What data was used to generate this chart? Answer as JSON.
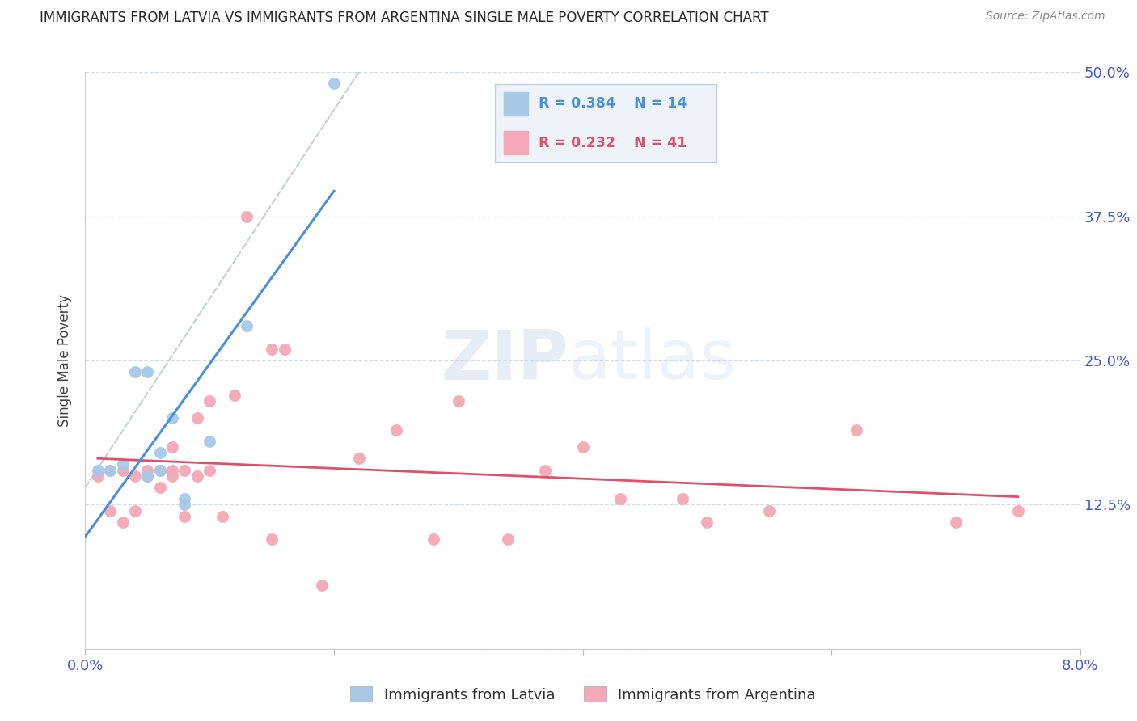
{
  "title": "IMMIGRANTS FROM LATVIA VS IMMIGRANTS FROM ARGENTINA SINGLE MALE POVERTY CORRELATION CHART",
  "source": "Source: ZipAtlas.com",
  "ylabel_label": "Single Male Poverty",
  "xmin": 0.0,
  "xmax": 0.08,
  "ymin": 0.0,
  "ymax": 0.5,
  "latvia_R": 0.384,
  "latvia_N": 14,
  "argentina_R": 0.232,
  "argentina_N": 41,
  "latvia_color": "#a8c8e8",
  "argentina_color": "#f4a8b8",
  "latvia_line_color": "#4a90d9",
  "argentina_line_color": "#e0506a",
  "diag_line_color": "#b8c8d8",
  "background_color": "#ffffff",
  "grid_color": "#d0dce8",
  "title_color": "#282828",
  "tick_color": "#4060c8",
  "legend_bg_color": "#eef3fa",
  "legend_border_color": "#b8cce0",
  "latvia_x": [
    0.001,
    0.002,
    0.003,
    0.004,
    0.005,
    0.005,
    0.006,
    0.006,
    0.007,
    0.008,
    0.008,
    0.01,
    0.013,
    0.02
  ],
  "latvia_y": [
    0.155,
    0.155,
    0.16,
    0.24,
    0.24,
    0.15,
    0.155,
    0.17,
    0.2,
    0.13,
    0.125,
    0.18,
    0.28,
    0.49
  ],
  "argentina_x": [
    0.001,
    0.002,
    0.002,
    0.003,
    0.003,
    0.004,
    0.004,
    0.005,
    0.005,
    0.006,
    0.006,
    0.007,
    0.007,
    0.007,
    0.008,
    0.008,
    0.009,
    0.009,
    0.01,
    0.01,
    0.011,
    0.012,
    0.013,
    0.015,
    0.015,
    0.016,
    0.019,
    0.022,
    0.025,
    0.028,
    0.03,
    0.034,
    0.037,
    0.04,
    0.043,
    0.048,
    0.05,
    0.055,
    0.062,
    0.07,
    0.075
  ],
  "argentina_y": [
    0.15,
    0.155,
    0.12,
    0.155,
    0.11,
    0.15,
    0.12,
    0.155,
    0.15,
    0.155,
    0.14,
    0.15,
    0.155,
    0.175,
    0.115,
    0.155,
    0.15,
    0.2,
    0.155,
    0.215,
    0.115,
    0.22,
    0.375,
    0.26,
    0.095,
    0.26,
    0.055,
    0.165,
    0.19,
    0.095,
    0.215,
    0.095,
    0.155,
    0.175,
    0.13,
    0.13,
    0.11,
    0.12,
    0.19,
    0.11,
    0.12
  ]
}
